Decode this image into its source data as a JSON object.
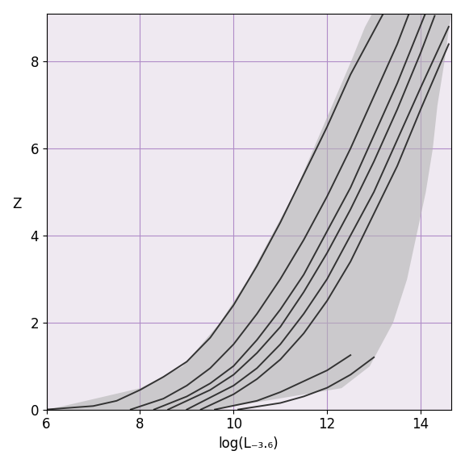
{
  "chart_data": {
    "type": "line",
    "x_label": "log(L₋₃.₆)",
    "y_label": "Z",
    "xlim": [
      6,
      14.65
    ],
    "ylim": [
      0,
      9.1
    ],
    "xticks": [
      6,
      8,
      10,
      12,
      14
    ],
    "yticks": [
      0,
      2,
      4,
      6,
      8
    ],
    "grid": true,
    "band": {
      "color": "#b4b4b4",
      "z": [
        0,
        0.5,
        1,
        2,
        3,
        4,
        5,
        6,
        7,
        8,
        8.8,
        9.1
      ],
      "x_left": [
        6,
        8,
        8.9,
        9.7,
        10.3,
        10.8,
        11.3,
        11.7,
        12.1,
        12.5,
        12.8,
        12.95
      ],
      "x_right": [
        9.5,
        12.3,
        12.9,
        13.4,
        13.7,
        13.9,
        14.1,
        14.25,
        14.35,
        14.5,
        14.6,
        14.65
      ]
    },
    "series": [
      {
        "color": "#333333",
        "x": [
          6.0,
          7.0,
          7.5,
          8.0,
          8.5,
          9.0,
          9.5,
          10.0,
          10.5,
          11.0,
          11.5,
          12.0,
          12.5,
          13.0,
          13.2
        ],
        "values": [
          0,
          0.08,
          0.2,
          0.45,
          0.75,
          1.1,
          1.65,
          2.4,
          3.3,
          4.3,
          5.4,
          6.5,
          7.7,
          8.7,
          9.1
        ]
      },
      {
        "color": "#333333",
        "x": [
          7.8,
          8.5,
          9.0,
          9.5,
          10.0,
          10.5,
          11.0,
          11.5,
          12.0,
          12.5,
          13.0,
          13.5,
          13.75
        ],
        "values": [
          0,
          0.25,
          0.55,
          0.95,
          1.5,
          2.2,
          3.0,
          3.9,
          4.9,
          6.0,
          7.2,
          8.4,
          9.1
        ]
      },
      {
        "color": "#333333",
        "x": [
          8.3,
          9.0,
          9.5,
          10.0,
          10.5,
          11.0,
          11.5,
          12.0,
          12.5,
          13.0,
          13.5,
          14.1
        ],
        "values": [
          0,
          0.3,
          0.6,
          1.0,
          1.6,
          2.3,
          3.1,
          4.1,
          5.1,
          6.3,
          7.5,
          9.1
        ]
      },
      {
        "color": "#333333",
        "x": [
          8.6,
          9.5,
          10.0,
          10.5,
          11.0,
          11.5,
          12.0,
          12.5,
          13.0,
          13.5,
          14.0,
          14.3
        ],
        "values": [
          0,
          0.45,
          0.8,
          1.3,
          1.9,
          2.7,
          3.6,
          4.6,
          5.7,
          6.9,
          8.2,
          9.05
        ]
      },
      {
        "color": "#333333",
        "x": [
          9.0,
          10.0,
          10.5,
          11.0,
          11.5,
          12.0,
          12.5,
          13.0,
          13.5,
          14.0,
          14.6
        ],
        "values": [
          0,
          0.55,
          0.95,
          1.5,
          2.2,
          3.0,
          4.0,
          5.0,
          6.2,
          7.4,
          8.8
        ]
      },
      {
        "color": "#333333",
        "x": [
          9.3,
          10.0,
          10.5,
          11.0,
          11.5,
          12.0,
          12.5,
          13.0,
          13.5,
          14.0,
          14.6
        ],
        "values": [
          0,
          0.35,
          0.7,
          1.15,
          1.75,
          2.5,
          3.4,
          4.5,
          5.6,
          6.9,
          8.4
        ]
      },
      {
        "color": "#333333",
        "x": [
          9.6,
          10.5,
          11.0,
          11.5,
          12.0,
          12.5
        ],
        "values": [
          0,
          0.2,
          0.4,
          0.65,
          0.9,
          1.25
        ]
      },
      {
        "color": "#333333",
        "x": [
          10.1,
          11.0,
          11.5,
          12.0,
          12.5,
          13.0
        ],
        "values": [
          0,
          0.15,
          0.3,
          0.5,
          0.8,
          1.2
        ]
      }
    ]
  }
}
